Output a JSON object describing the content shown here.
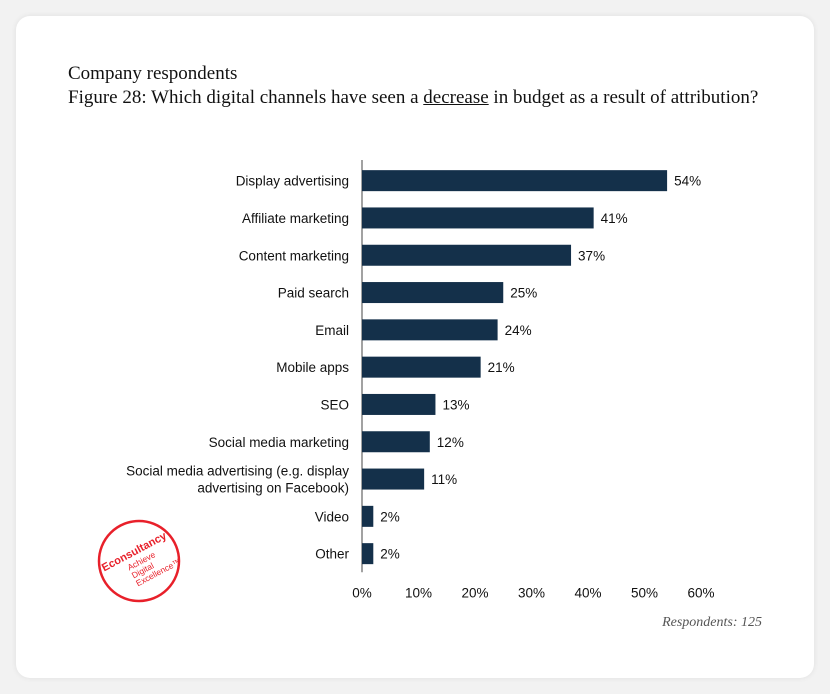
{
  "header": {
    "line1": "Company respondents",
    "line2_pre": "Figure 28: Which digital channels have seen a ",
    "line2_em": "decrease",
    "line2_post": " in budget as a result of attribution?"
  },
  "respondents_note": "Respondents: 125",
  "logo": {
    "name": "Econsultancy",
    "tagline_1": "Achieve",
    "tagline_2": "Digital",
    "tagline_3": "Excellence™"
  },
  "colors": {
    "bar": "#14304a",
    "axis": "#444444",
    "text": "#111111",
    "logo": "#e8202a"
  },
  "chart_data": {
    "type": "bar",
    "orientation": "horizontal",
    "categories": [
      [
        "Display advertising"
      ],
      [
        "Affiliate marketing"
      ],
      [
        "Content marketing"
      ],
      [
        "Paid search"
      ],
      [
        "Email"
      ],
      [
        "Mobile apps"
      ],
      [
        "SEO"
      ],
      [
        "Social media marketing"
      ],
      [
        "Social media advertising (e.g. display",
        "advertising on Facebook)"
      ],
      [
        "Video"
      ],
      [
        "Other"
      ]
    ],
    "values": [
      54,
      41,
      37,
      25,
      24,
      21,
      13,
      12,
      11,
      2,
      2
    ],
    "value_labels": [
      "54%",
      "41%",
      "37%",
      "25%",
      "24%",
      "21%",
      "13%",
      "12%",
      "11%",
      "2%",
      "2%"
    ],
    "x_ticks": [
      0,
      10,
      20,
      30,
      40,
      50,
      60
    ],
    "x_tick_labels": [
      "0%",
      "10%",
      "20%",
      "30%",
      "40%",
      "50%",
      "60%"
    ],
    "xlim": [
      0,
      60
    ],
    "grid": false
  }
}
